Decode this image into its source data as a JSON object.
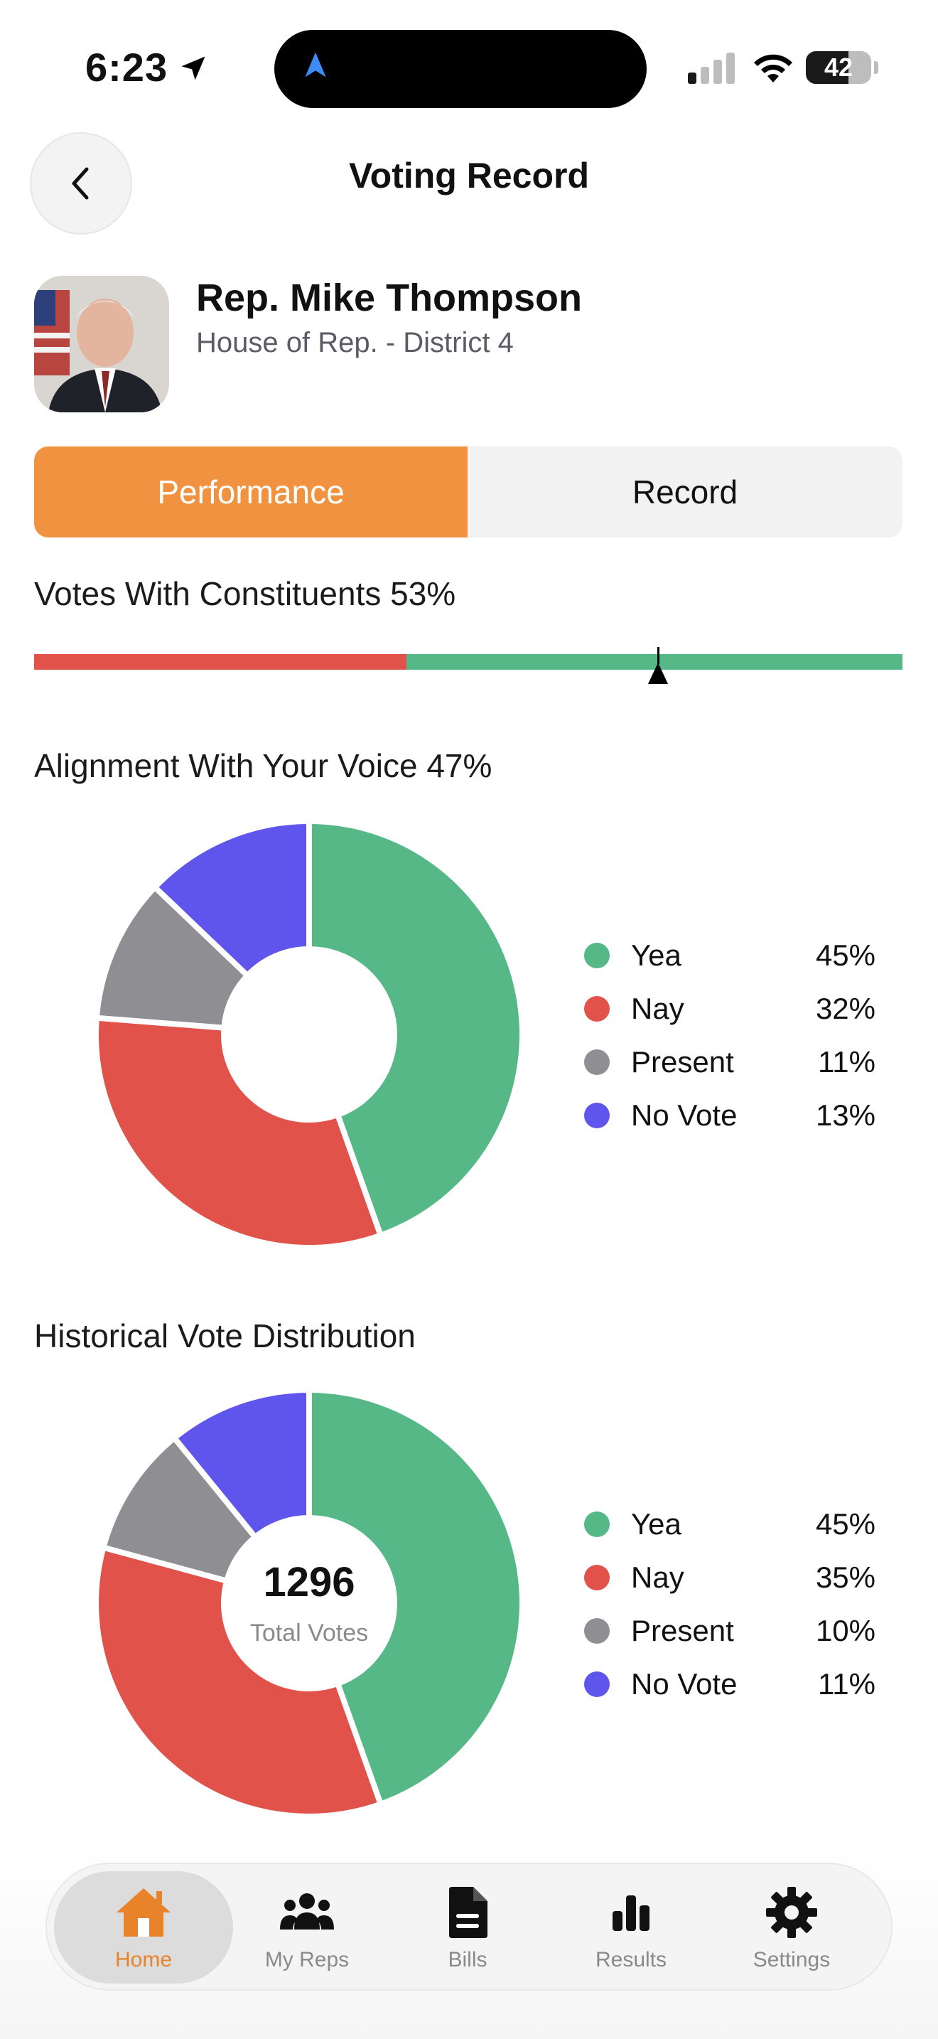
{
  "status": {
    "time": "6:23",
    "battery": "42"
  },
  "header": {
    "title": "Voting Record"
  },
  "rep": {
    "name": "Rep. Mike Thompson",
    "subtitle": "House of Rep. - District 4"
  },
  "tabs": {
    "active": "Performance",
    "inactive": "Record"
  },
  "constituents": {
    "title": "Votes With Constituents 53%",
    "value": 0.53,
    "red_fraction": 0.43
  },
  "alignment": {
    "title": "Alignment With Your Voice 47%",
    "legend": [
      {
        "label": "Yea",
        "value": "45%"
      },
      {
        "label": "Nay",
        "value": "32%"
      },
      {
        "label": "Present",
        "value": "11%"
      },
      {
        "label": "No Vote",
        "value": "13%"
      }
    ]
  },
  "historical": {
    "title": "Historical Vote Distribution",
    "total": "1296",
    "total_label": "Total Votes",
    "legend": [
      {
        "label": "Yea",
        "value": "45%"
      },
      {
        "label": "Nay",
        "value": "35%"
      },
      {
        "label": "Present",
        "value": "10%"
      },
      {
        "label": "No Vote",
        "value": "11%"
      }
    ]
  },
  "chart_data": [
    {
      "type": "pie",
      "categories": [
        "Yea",
        "Nay",
        "Present",
        "No Vote"
      ],
      "values": [
        45,
        32,
        11,
        13
      ]
    },
    {
      "type": "pie",
      "categories": [
        "Yea",
        "Nay",
        "Present",
        "No Vote"
      ],
      "values": [
        45,
        35,
        10,
        11
      ]
    }
  ],
  "colors": {
    "yea": "#56b886",
    "nay": "#e0524a",
    "present": "#8e8e93",
    "novote": "#5f55ec",
    "accent": "#f0923f"
  },
  "tabbar": {
    "items": [
      {
        "label": "Home",
        "icon": "home-icon"
      },
      {
        "label": "My Reps",
        "icon": "people-icon"
      },
      {
        "label": "Bills",
        "icon": "document-icon"
      },
      {
        "label": "Results",
        "icon": "bar-chart-icon"
      },
      {
        "label": "Settings",
        "icon": "gear-icon"
      }
    ]
  }
}
